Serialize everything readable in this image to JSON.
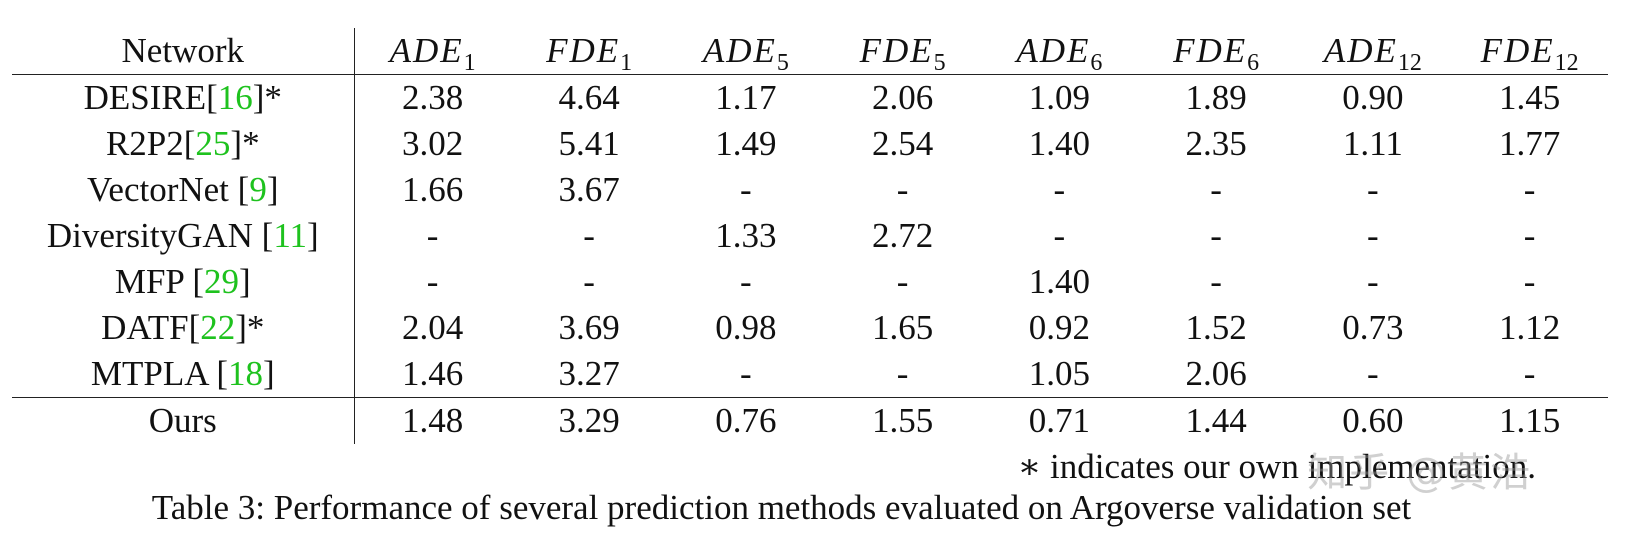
{
  "table": {
    "header": {
      "network_label": "Network",
      "metrics": [
        {
          "base": "ADE",
          "sub": "1"
        },
        {
          "base": "FDE",
          "sub": "1"
        },
        {
          "base": "ADE",
          "sub": "5"
        },
        {
          "base": "FDE",
          "sub": "5"
        },
        {
          "base": "ADE",
          "sub": "6"
        },
        {
          "base": "FDE",
          "sub": "6"
        },
        {
          "base": "ADE",
          "sub": "12"
        },
        {
          "base": "FDE",
          "sub": "12"
        }
      ]
    },
    "rows": [
      {
        "name": "DESIRE",
        "sep": "",
        "ref": "16",
        "star": "*",
        "values": [
          "2.38",
          "4.64",
          "1.17",
          "2.06",
          "1.09",
          "1.89",
          "0.90",
          "1.45"
        ],
        "bold": [
          false,
          false,
          false,
          false,
          false,
          false,
          false,
          false
        ]
      },
      {
        "name": "R2P2",
        "sep": "",
        "ref": "25",
        "star": "*",
        "values": [
          "3.02",
          "5.41",
          "1.49",
          "2.54",
          "1.40",
          "2.35",
          "1.11",
          "1.77"
        ],
        "bold": [
          false,
          false,
          false,
          false,
          false,
          false,
          false,
          false
        ]
      },
      {
        "name": "VectorNet",
        "sep": " ",
        "ref": "9",
        "star": "",
        "values": [
          "1.66",
          "3.67",
          "-",
          "-",
          "-",
          "-",
          "-",
          "-"
        ],
        "bold": [
          false,
          false,
          false,
          false,
          false,
          false,
          false,
          false
        ]
      },
      {
        "name": "DiversityGAN",
        "sep": " ",
        "ref": "11",
        "star": "",
        "values": [
          "-",
          "-",
          "1.33",
          "2.72",
          "-",
          "-",
          "-",
          "-"
        ],
        "bold": [
          false,
          false,
          false,
          false,
          false,
          false,
          false,
          false
        ]
      },
      {
        "name": "MFP",
        "sep": " ",
        "ref": "29",
        "star": "",
        "values": [
          "-",
          "-",
          "-",
          "-",
          "1.40",
          "-",
          "-",
          "-"
        ],
        "bold": [
          false,
          false,
          false,
          false,
          false,
          false,
          false,
          false
        ]
      },
      {
        "name": "DATF",
        "sep": "",
        "ref": "22",
        "star": "*",
        "values": [
          "2.04",
          "3.69",
          "0.98",
          "1.65",
          "0.92",
          "1.52",
          "0.73",
          "1.12"
        ],
        "bold": [
          false,
          false,
          false,
          false,
          false,
          false,
          false,
          true
        ]
      },
      {
        "name": "MTPLA",
        "sep": " ",
        "ref": "18",
        "star": "",
        "values": [
          "1.46",
          "3.27",
          "-",
          "-",
          "1.05",
          "2.06",
          "-",
          "-"
        ],
        "bold": [
          true,
          true,
          false,
          false,
          false,
          false,
          false,
          false
        ]
      },
      {
        "name": "Ours",
        "sep": "",
        "ref": "",
        "star": "",
        "values": [
          "1.48",
          "3.29",
          "0.76",
          "1.55",
          "0.71",
          "1.44",
          "0.60",
          "1.15"
        ],
        "bold": [
          false,
          false,
          true,
          true,
          true,
          true,
          true,
          false
        ]
      }
    ]
  },
  "footnote": "∗ indicates our own implementation.",
  "caption": "Table 3: Performance of several prediction methods evaluated on Argoverse validation set",
  "watermark": "知乎 @黄浩",
  "colors": {
    "ref_link": "#1ec21e"
  }
}
